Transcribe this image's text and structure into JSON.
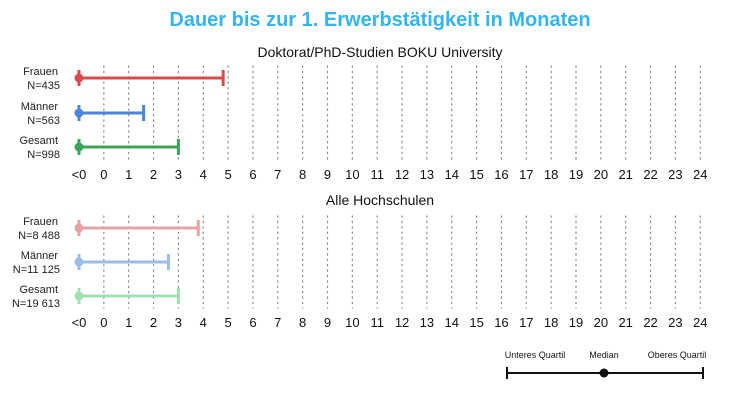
{
  "chart_data": {
    "type": "range",
    "title": "Dauer bis zur 1. Erwerbstätigkeit in Monaten",
    "x_ticks": [
      "<0",
      "0",
      "1",
      "2",
      "3",
      "4",
      "5",
      "6",
      "7",
      "8",
      "9",
      "10",
      "11",
      "12",
      "13",
      "14",
      "15",
      "16",
      "17",
      "18",
      "19",
      "20",
      "21",
      "22",
      "23",
      "24"
    ],
    "panels": [
      {
        "title": "Doktorat/PhD-Studien BOKU University",
        "rows": [
          {
            "label": "Frauen",
            "n": "N=435",
            "lower": "<0",
            "median": "<0",
            "upper": 4.8,
            "color": "#d94a4a"
          },
          {
            "label": "Männer",
            "n": "N=563",
            "lower": "<0",
            "median": "<0",
            "upper": 1.6,
            "color": "#4a86d9"
          },
          {
            "label": "Gesamt",
            "n": "N=998",
            "lower": "<0",
            "median": "<0",
            "upper": 3.0,
            "color": "#3aa65a"
          }
        ]
      },
      {
        "title": "Alle Hochschulen",
        "rows": [
          {
            "label": "Frauen",
            "n": "N=8 488",
            "lower": "<0",
            "median": "<0",
            "upper": 3.8,
            "color": "#e5a3a3"
          },
          {
            "label": "Männer",
            "n": "N=11 125",
            "lower": "<0",
            "median": "<0",
            "upper": 2.6,
            "color": "#9dbde6"
          },
          {
            "label": "Gesamt",
            "n": "N=19 613",
            "lower": "<0",
            "median": "<0",
            "upper": 3.0,
            "color": "#9ee0b2"
          }
        ]
      }
    ],
    "legend": {
      "lower_label": "Unteres Quartil",
      "median_label": "Median",
      "upper_label": "Oberes Quartil"
    }
  }
}
